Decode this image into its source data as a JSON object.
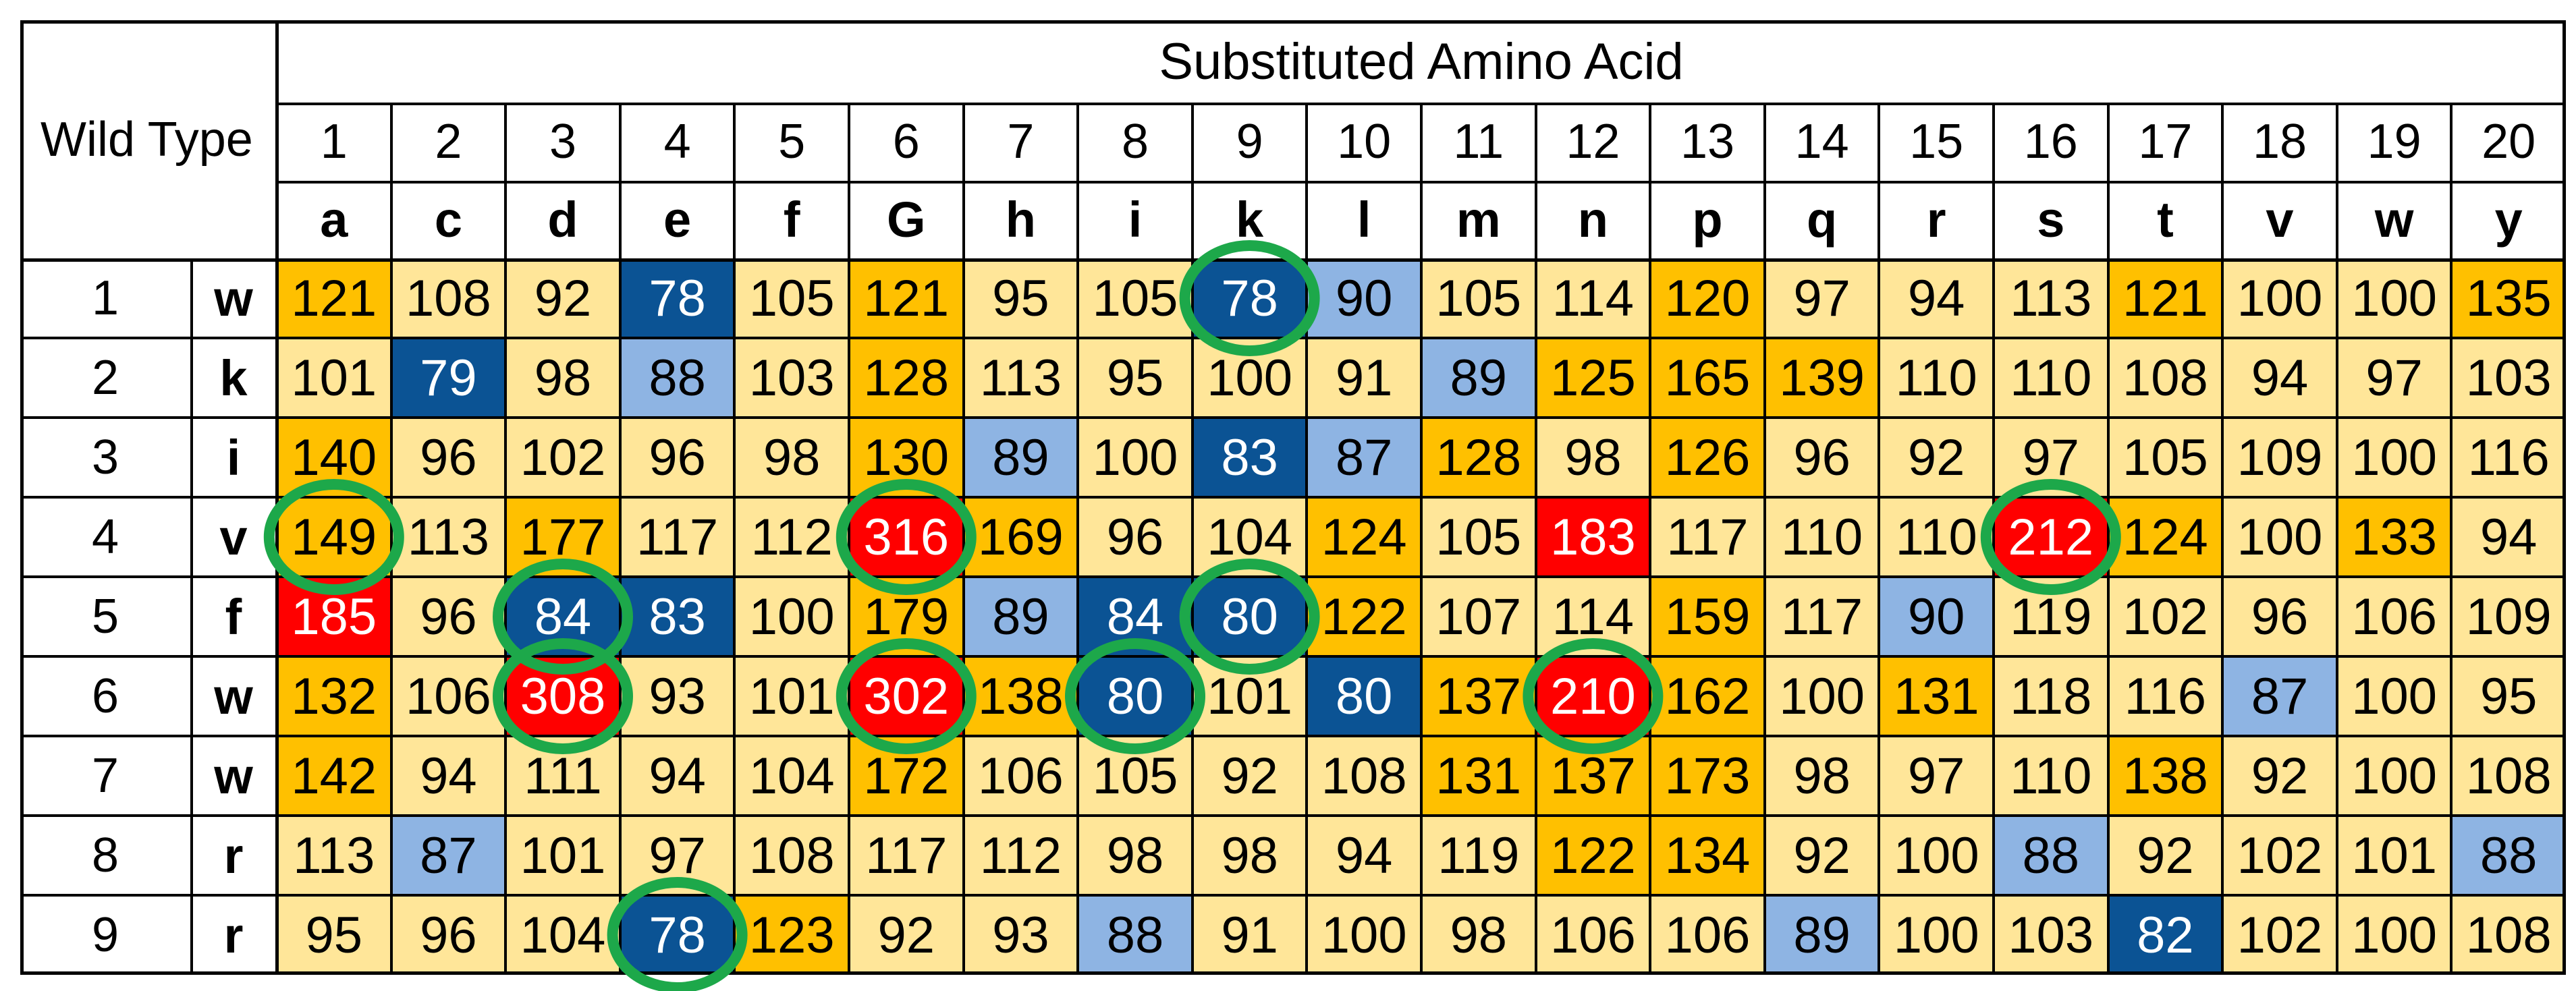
{
  "header": {
    "title": "Substituted Amino Acid",
    "corner_label": "Wild Type",
    "column_numbers": [
      "1",
      "2",
      "3",
      "4",
      "5",
      "6",
      "7",
      "8",
      "9",
      "10",
      "11",
      "12",
      "13",
      "14",
      "15",
      "16",
      "17",
      "18",
      "19",
      "20"
    ],
    "column_letters": [
      "a",
      "c",
      "d",
      "e",
      "f",
      "G",
      "h",
      "i",
      "k",
      "l",
      "m",
      "n",
      "p",
      "q",
      "r",
      "s",
      "t",
      "v",
      "w",
      "y"
    ]
  },
  "rows": [
    {
      "number": "1",
      "residue": "w",
      "values": [
        "121",
        "108",
        "92",
        "78",
        "105",
        "121",
        "95",
        "105",
        "78",
        "90",
        "105",
        "114",
        "120",
        "97",
        "94",
        "113",
        "121",
        "100",
        "100",
        "135"
      ],
      "fills": [
        "O",
        "L",
        "L",
        "D",
        "L",
        "O",
        "L",
        "L",
        "D",
        "M",
        "L",
        "L",
        "O",
        "L",
        "L",
        "L",
        "O",
        "L",
        "L",
        "O"
      ]
    },
    {
      "number": "2",
      "residue": "k",
      "values": [
        "101",
        "79",
        "98",
        "88",
        "103",
        "128",
        "113",
        "95",
        "100",
        "91",
        "89",
        "125",
        "165",
        "139",
        "110",
        "110",
        "108",
        "94",
        "97",
        "103"
      ],
      "fills": [
        "L",
        "D",
        "L",
        "M",
        "L",
        "O",
        "L",
        "L",
        "L",
        "L",
        "M",
        "O",
        "O",
        "O",
        "L",
        "L",
        "L",
        "L",
        "L",
        "L"
      ]
    },
    {
      "number": "3",
      "residue": "i",
      "values": [
        "140",
        "96",
        "102",
        "96",
        "98",
        "130",
        "89",
        "100",
        "83",
        "87",
        "128",
        "98",
        "126",
        "96",
        "92",
        "97",
        "105",
        "109",
        "100",
        "116"
      ],
      "fills": [
        "O",
        "L",
        "L",
        "L",
        "L",
        "O",
        "M",
        "L",
        "D",
        "M",
        "O",
        "L",
        "O",
        "L",
        "L",
        "L",
        "L",
        "L",
        "L",
        "L"
      ]
    },
    {
      "number": "4",
      "residue": "v",
      "values": [
        "149",
        "113",
        "177",
        "117",
        "112",
        "316",
        "169",
        "96",
        "104",
        "124",
        "105",
        "183",
        "117",
        "110",
        "110",
        "212",
        "124",
        "100",
        "133",
        "94"
      ],
      "fills": [
        "O",
        "L",
        "O",
        "L",
        "L",
        "R",
        "O",
        "L",
        "L",
        "O",
        "L",
        "R",
        "L",
        "L",
        "L",
        "R",
        "O",
        "L",
        "O",
        "L"
      ]
    },
    {
      "number": "5",
      "residue": "f",
      "values": [
        "185",
        "96",
        "84",
        "83",
        "100",
        "179",
        "89",
        "84",
        "80",
        "122",
        "107",
        "114",
        "159",
        "117",
        "90",
        "119",
        "102",
        "96",
        "106",
        "109"
      ],
      "fills": [
        "R",
        "L",
        "D",
        "D",
        "L",
        "O",
        "M",
        "D",
        "D",
        "O",
        "L",
        "L",
        "O",
        "L",
        "M",
        "L",
        "L",
        "L",
        "L",
        "L"
      ]
    },
    {
      "number": "6",
      "residue": "w",
      "values": [
        "132",
        "106",
        "308",
        "93",
        "101",
        "302",
        "138",
        "80",
        "101",
        "80",
        "137",
        "210",
        "162",
        "100",
        "131",
        "118",
        "116",
        "87",
        "100",
        "95"
      ],
      "fills": [
        "O",
        "L",
        "R",
        "L",
        "L",
        "R",
        "O",
        "D",
        "L",
        "D",
        "O",
        "R",
        "O",
        "L",
        "O",
        "L",
        "L",
        "M",
        "L",
        "L"
      ]
    },
    {
      "number": "7",
      "residue": "w",
      "values": [
        "142",
        "94",
        "111",
        "94",
        "104",
        "172",
        "106",
        "105",
        "92",
        "108",
        "131",
        "137",
        "173",
        "98",
        "97",
        "110",
        "138",
        "92",
        "100",
        "108"
      ],
      "fills": [
        "O",
        "L",
        "L",
        "L",
        "L",
        "O",
        "L",
        "L",
        "L",
        "L",
        "O",
        "O",
        "O",
        "L",
        "L",
        "L",
        "O",
        "L",
        "L",
        "L"
      ]
    },
    {
      "number": "8",
      "residue": "r",
      "values": [
        "113",
        "87",
        "101",
        "97",
        "108",
        "117",
        "112",
        "98",
        "98",
        "94",
        "119",
        "122",
        "134",
        "92",
        "100",
        "88",
        "92",
        "102",
        "101",
        "88"
      ],
      "fills": [
        "L",
        "M",
        "L",
        "L",
        "L",
        "L",
        "L",
        "L",
        "L",
        "L",
        "L",
        "O",
        "O",
        "L",
        "L",
        "M",
        "L",
        "L",
        "L",
        "M"
      ]
    },
    {
      "number": "9",
      "residue": "r",
      "values": [
        "95",
        "96",
        "104",
        "78",
        "123",
        "92",
        "93",
        "88",
        "91",
        "100",
        "98",
        "106",
        "106",
        "89",
        "100",
        "103",
        "82",
        "102",
        "100",
        "108"
      ],
      "fills": [
        "L",
        "L",
        "L",
        "D",
        "O",
        "L",
        "L",
        "M",
        "L",
        "L",
        "L",
        "L",
        "L",
        "M",
        "L",
        "L",
        "D",
        "L",
        "L",
        "L"
      ]
    }
  ],
  "fill_colors": {
    "L": "#FFE699",
    "O": "#FFC000",
    "D": "#0B5394",
    "M": "#8EB4E3",
    "R": "#FF0000"
  },
  "text_colors": {
    "L": "#000000",
    "O": "#000000",
    "D": "#FFFFFF",
    "M": "#000000",
    "R": "#FFFFFF"
  },
  "circle_color": "#1DA84A",
  "circled_cells": [
    {
      "row": 1,
      "col": 9
    },
    {
      "row": 4,
      "col": 1
    },
    {
      "row": 4,
      "col": 6
    },
    {
      "row": 4,
      "col": 16
    },
    {
      "row": 5,
      "col": 3
    },
    {
      "row": 5,
      "col": 9
    },
    {
      "row": 6,
      "col": 3
    },
    {
      "row": 6,
      "col": 6
    },
    {
      "row": 6,
      "col": 8
    },
    {
      "row": 6,
      "col": 12
    },
    {
      "row": 9,
      "col": 4
    }
  ]
}
